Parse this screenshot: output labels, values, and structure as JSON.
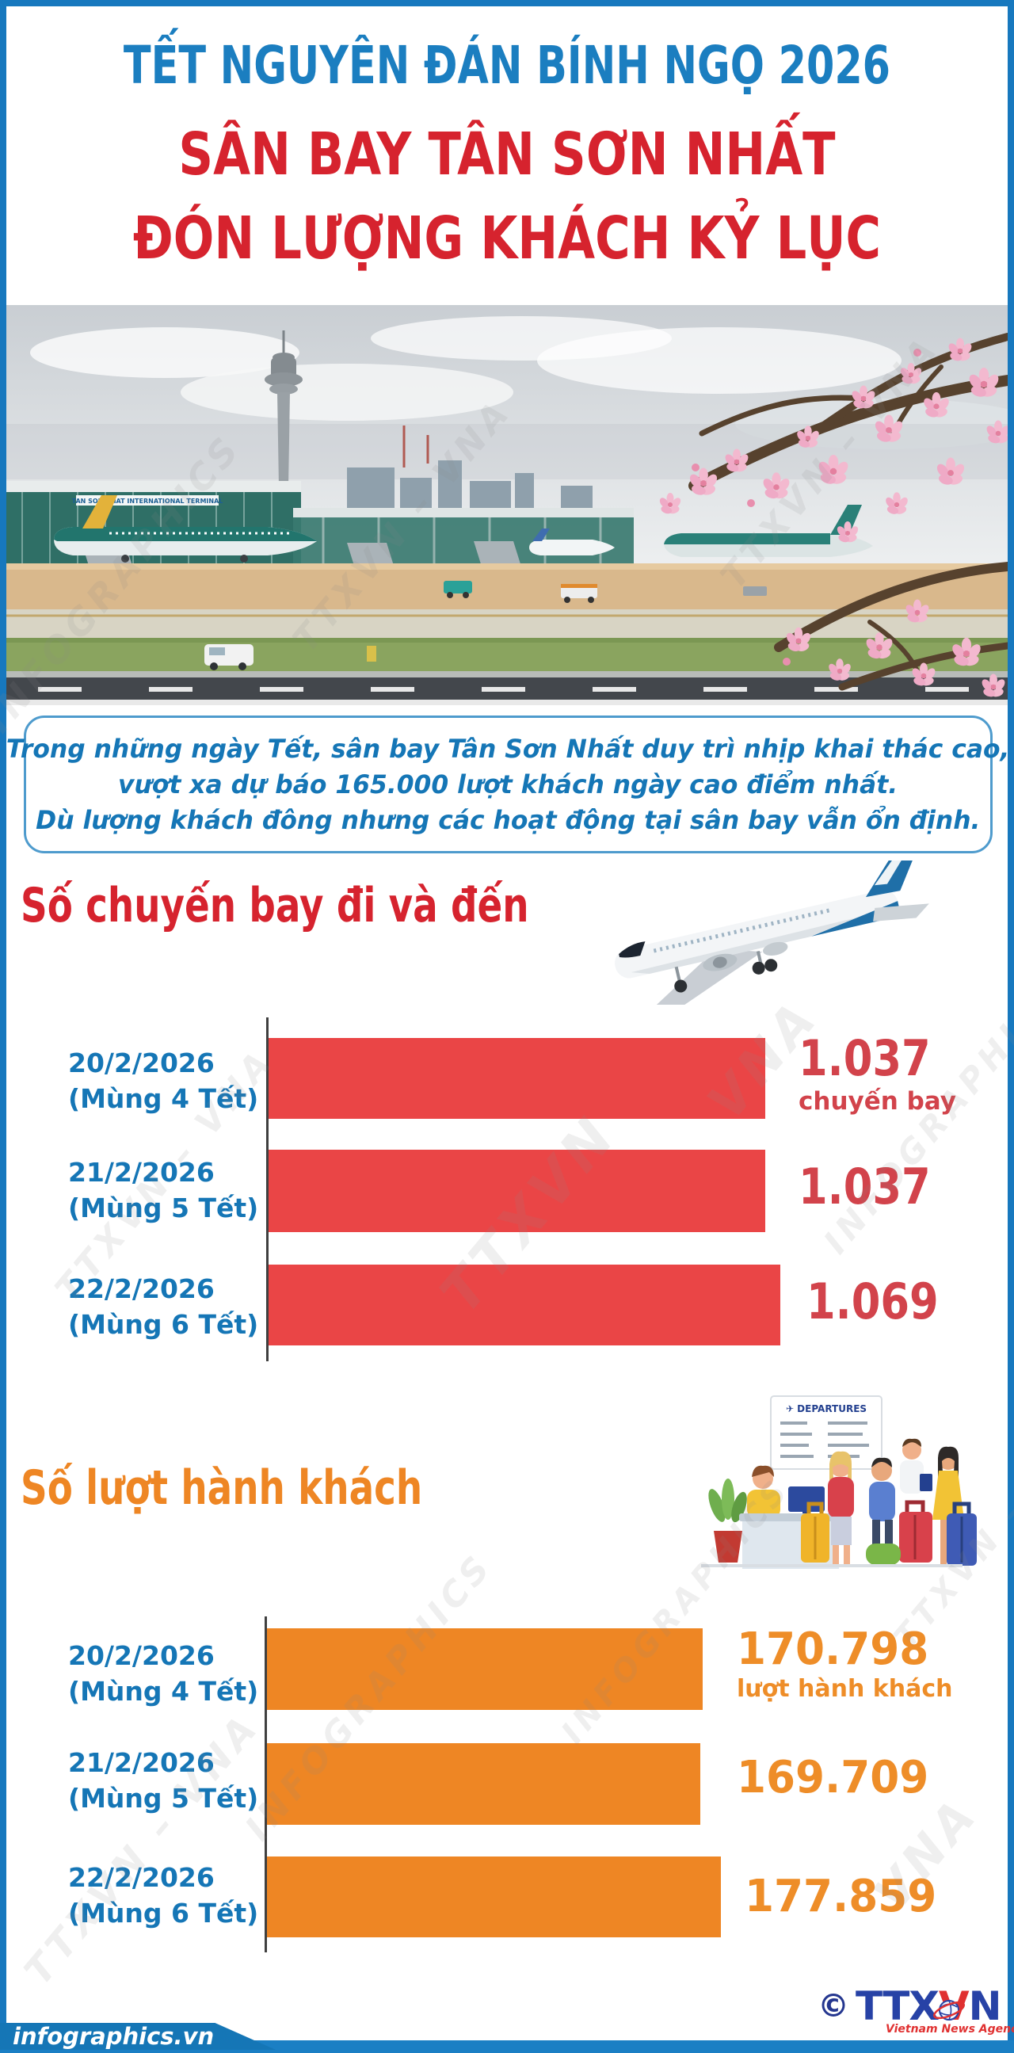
{
  "header": {
    "supertitle": "TẾT NGUYÊN ĐÁN BÍNH NGỌ 2026",
    "title_line1": "SÂN BAY TÂN SƠN NHẤT",
    "title_line2": "ĐÓN LƯỢNG KHÁCH KỶ LỤC"
  },
  "intro": {
    "line1": "Trong những ngày Tết, sân bay Tân Sơn Nhất duy trì nhịp khai thác cao,",
    "line2": "vượt xa dự báo 165.000 lượt khách ngày cao điểm nhất.",
    "line3": "Dù lượng khách đông nhưng các hoạt động tại sân bay vẫn ổn định."
  },
  "photo": {
    "terminal_sign": "TAN SON NHAT INTERNATIONAL TERMINAL"
  },
  "illustration": {
    "board_title": "✈ DEPARTURES"
  },
  "chart_data": [
    {
      "type": "bar",
      "orientation": "horizontal",
      "title": "Số chuyến bay đi và đến",
      "unit_label": "chuyến bay",
      "categories": [
        "20/2/2026 (Mùng 4 Tết)",
        "21/2/2026 (Mùng 5 Tết)",
        "22/2/2026 (Mùng 6 Tết)"
      ],
      "categories_date": [
        "20/2/2026",
        "21/2/2026",
        "22/2/2026"
      ],
      "categories_lunar": [
        "(Mùng 4 Tết)",
        "(Mùng 5 Tết)",
        "(Mùng 6 Tết)"
      ],
      "values": [
        1037,
        1037,
        1069
      ],
      "value_labels": [
        "1.037",
        "1.037",
        "1.069"
      ],
      "xlim": [
        0,
        1100
      ],
      "grid": false,
      "value_position": "right-of-bar",
      "bar_color": "#ea4546",
      "value_color": "#d2434b",
      "category_color": "#1576b6",
      "title_color": "#d6232e",
      "axis_color": "#3f3f3f"
    },
    {
      "type": "bar",
      "orientation": "horizontal",
      "title": "Số lượt hành khách",
      "unit_label": "lượt hành khách",
      "categories": [
        "20/2/2026 (Mùng 4 Tết)",
        "21/2/2026 (Mùng 5 Tết)",
        "22/2/2026 (Mùng 6 Tết)"
      ],
      "categories_date": [
        "20/2/2026",
        "21/2/2026",
        "22/2/2026"
      ],
      "categories_lunar": [
        "(Mùng 4 Tết)",
        "(Mùng 5 Tết)",
        "(Mùng 6 Tết)"
      ],
      "values": [
        170798,
        169709,
        177859
      ],
      "value_labels": [
        "170.798",
        "169.709",
        "177.859"
      ],
      "xlim": [
        0,
        185000
      ],
      "grid": false,
      "value_position": "right-of-bar",
      "bar_color": "#ee8624",
      "value_color": "#ee8d28",
      "category_color": "#1576b6",
      "title_color": "#ee8624",
      "axis_color": "#3f3f3f"
    }
  ],
  "watermarks": [
    "INFOGRAPHICS",
    "TTXVN – VNA",
    "TTXVN – VNA",
    "VNA",
    "TTXVN",
    "INFOGRAPHICS",
    "TTXVN – VNA",
    "INFOGRAPHICS",
    "TTXVN – VNA",
    "VNA",
    "INFOGRAPHICS",
    "TTXVN – VNA"
  ],
  "footer": {
    "site": "infographics.vn",
    "copyright": "©",
    "agency_abbr_part1": "TTX",
    "agency_abbr_part2": "V",
    "agency_abbr_part3": "N",
    "agency_name": "Vietnam News Agency"
  },
  "colors": {
    "frame": "#1778be",
    "supertitle": "#1b7ec0",
    "title_red": "#d6232e",
    "intro_text": "#1576b6",
    "intro_border": "#4e9bcd",
    "bar_red": "#ea4546",
    "bar_orange": "#ee8624",
    "label_blue": "#1576b6",
    "footer_bar": "#1b7fc4",
    "logo_blue": "#2742a6",
    "logo_red": "#e03131"
  }
}
